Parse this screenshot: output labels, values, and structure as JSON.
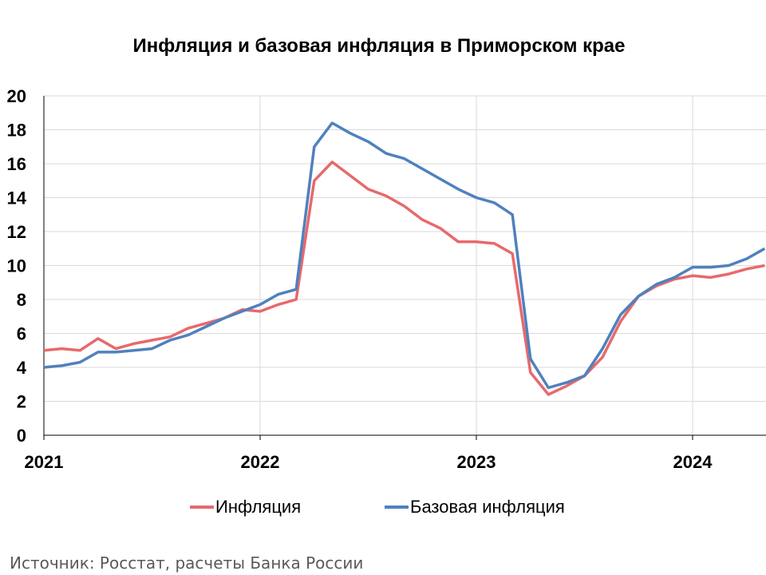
{
  "chart_data": {
    "type": "line",
    "title": "Инфляция и базовая инфляция в Приморском крае",
    "xlabel": "",
    "ylabel": "",
    "ylim": [
      0,
      20
    ],
    "yticks": [
      "0",
      "2",
      "4",
      "6",
      "8",
      "10",
      "12",
      "14",
      "16",
      "18",
      "20"
    ],
    "xticks": [
      "2021",
      "2022",
      "2023",
      "2024"
    ],
    "x": [
      "2021-01",
      "2021-02",
      "2021-03",
      "2021-04",
      "2021-05",
      "2021-06",
      "2021-07",
      "2021-08",
      "2021-09",
      "2021-10",
      "2021-11",
      "2021-12",
      "2022-01",
      "2022-02",
      "2022-03",
      "2022-04",
      "2022-05",
      "2022-06",
      "2022-07",
      "2022-08",
      "2022-09",
      "2022-10",
      "2022-11",
      "2022-12",
      "2023-01",
      "2023-02",
      "2023-03",
      "2023-04",
      "2023-05",
      "2023-06",
      "2023-07",
      "2023-08",
      "2023-09",
      "2023-10",
      "2023-11",
      "2023-12",
      "2024-01",
      "2024-02",
      "2024-03",
      "2024-04",
      "2024-05"
    ],
    "grid": true,
    "legend_position": "bottom",
    "series": [
      {
        "name": "Инфляция",
        "color": "#e8696b",
        "values": [
          5.0,
          5.1,
          5.0,
          5.7,
          5.1,
          5.4,
          5.6,
          5.8,
          6.3,
          6.6,
          6.9,
          7.4,
          7.3,
          7.7,
          8.0,
          15.0,
          16.1,
          15.3,
          14.5,
          14.1,
          13.5,
          12.7,
          12.2,
          11.4,
          11.4,
          11.3,
          10.7,
          3.7,
          2.4,
          2.9,
          3.5,
          4.6,
          6.7,
          8.2,
          8.8,
          9.2,
          9.4,
          9.3,
          9.5,
          9.8,
          10.0
        ]
      },
      {
        "name": "Базовая инфляция",
        "color": "#4f81bd",
        "values": [
          4.0,
          4.1,
          4.3,
          4.9,
          4.9,
          5.0,
          5.1,
          5.6,
          5.9,
          6.4,
          6.9,
          7.3,
          7.7,
          8.3,
          8.6,
          17.0,
          18.4,
          17.8,
          17.3,
          16.6,
          16.3,
          15.7,
          15.1,
          14.5,
          14.0,
          13.7,
          13.0,
          4.5,
          2.8,
          3.1,
          3.5,
          5.1,
          7.1,
          8.2,
          8.9,
          9.3,
          9.9,
          9.9,
          10.0,
          10.4,
          11.0
        ]
      }
    ]
  },
  "source": "Источник: Росстат, расчеты Банка России"
}
